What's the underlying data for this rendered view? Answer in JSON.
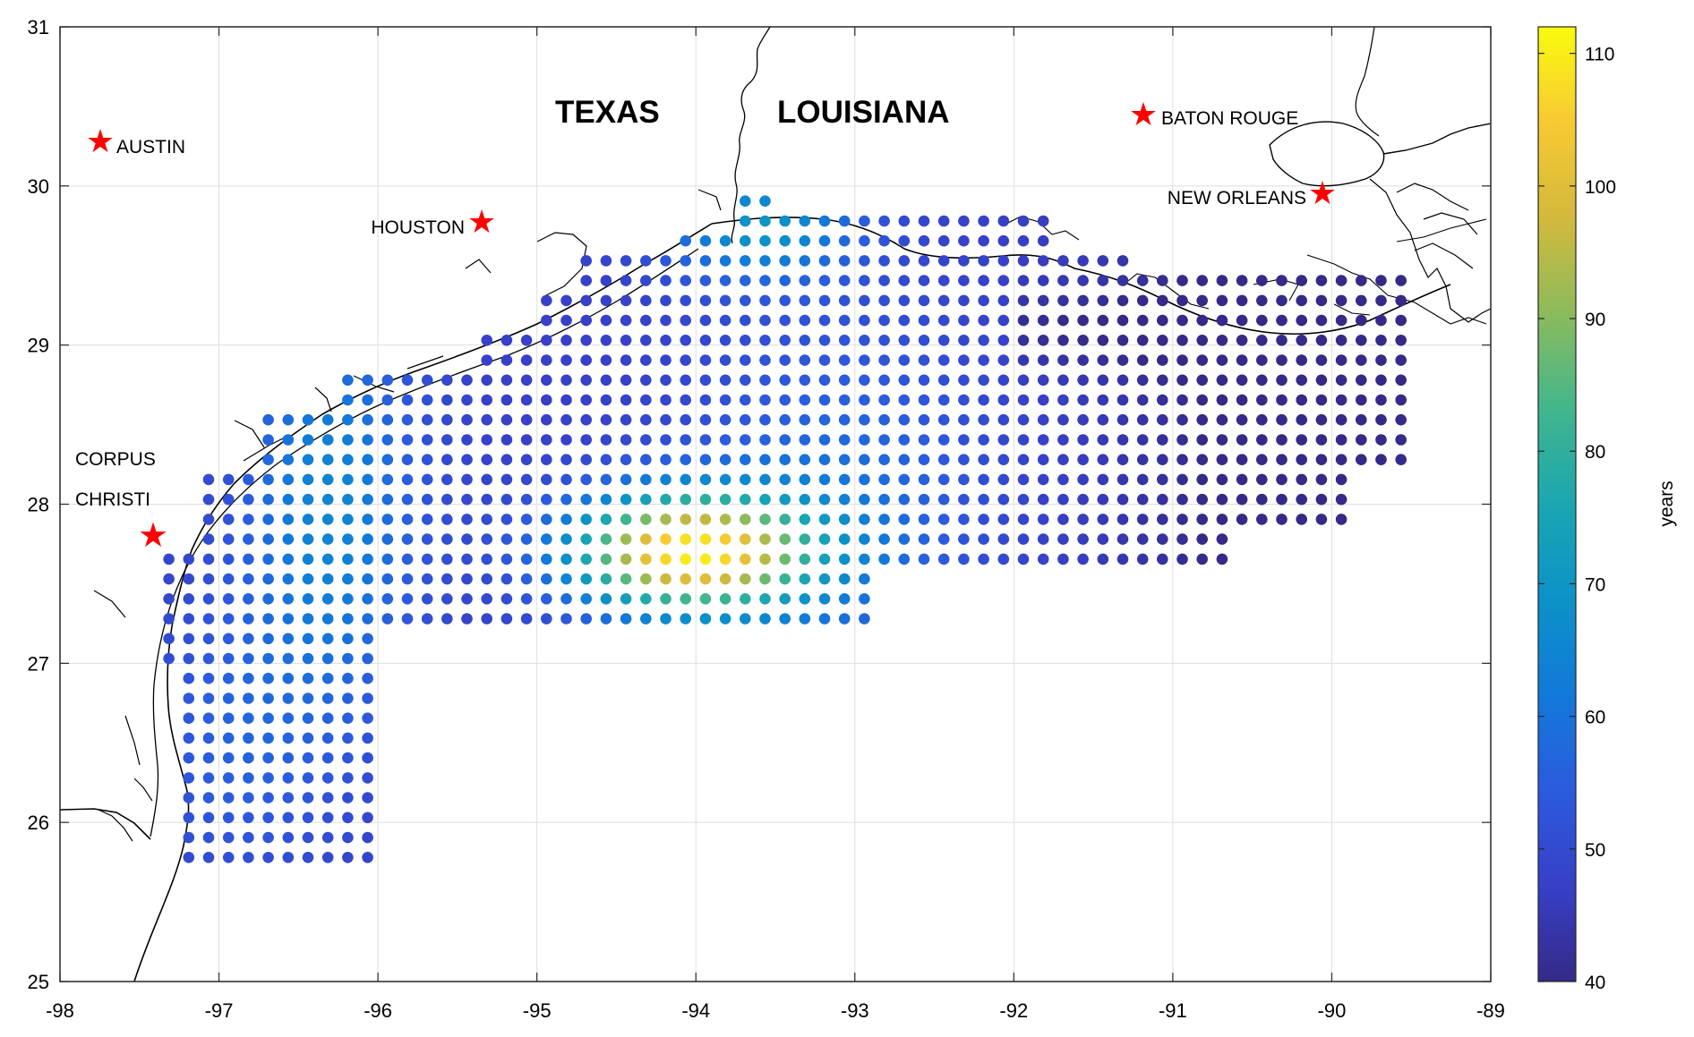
{
  "map": {
    "lon_range": [
      -98,
      -89
    ],
    "lat_range": [
      25,
      31
    ],
    "x_ticks": [
      "-98",
      "-97",
      "-96",
      "-95",
      "-94",
      "-93",
      "-92",
      "-91",
      "-90",
      "-89"
    ],
    "y_ticks": [
      "25",
      "26",
      "27",
      "28",
      "29",
      "30",
      "31"
    ],
    "grid": true,
    "coastline_color": "#000000",
    "marker_color": "#ff0000",
    "state_labels": [
      {
        "text": "TEXAS",
        "lon": -95.1,
        "lat": 30.45
      },
      {
        "text": "LOUISIANA",
        "lon": -92.6,
        "lat": 30.45
      }
    ],
    "cities": [
      {
        "name": "AUSTIN",
        "lon": -97.75,
        "lat": 30.27
      },
      {
        "name": "HOUSTON",
        "lon": -95.37,
        "lat": 29.76
      },
      {
        "name": "BATON ROUGE",
        "lon": -91.19,
        "lat": 30.45
      },
      {
        "name": "NEW ORLEANS",
        "lon": -90.07,
        "lat": 29.95
      },
      {
        "name_lines": [
          "CORPUS",
          "CHRISTI"
        ],
        "lon": -97.4,
        "lat": 27.8
      }
    ]
  },
  "colorbar": {
    "label": "years",
    "min": 40,
    "max": 112,
    "ticks": [
      "40",
      "50",
      "60",
      "70",
      "80",
      "90",
      "100",
      "110"
    ],
    "colormap": "parula"
  }
}
